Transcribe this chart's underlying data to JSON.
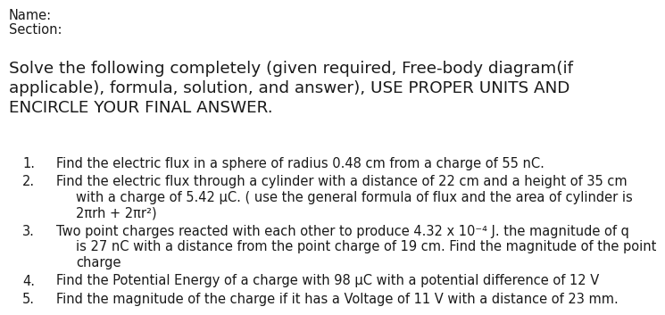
{
  "background_color": "#ffffff",
  "label_name": "Name:",
  "label_section": "Section:",
  "header_line1": "Solve the following completely (given required, Free-body diagram(if",
  "header_line2": "applicable), formula, solution, and answer), USE PROPER UNITS AND",
  "header_line3": "ENCIRCLE YOUR FINAL ANSWER.",
  "items": [
    {
      "num": "1.",
      "lines": [
        "Find the electric flux in a sphere of radius 0.48 cm from a charge of 55 nC."
      ]
    },
    {
      "num": "2.",
      "lines": [
        "Find the electric flux through a cylinder with a distance of 22 cm and a height of 35 cm",
        "with a charge of 5.42 μC. ( use the general formula of flux and the area of cylinder is",
        "2πrh + 2πr²)"
      ]
    },
    {
      "num": "3.",
      "lines": [
        "Two point charges reacted with each other to produce 4.32 x 10⁻⁴ J. the magnitude of q",
        "is 27 nC with a distance from the point charge of 19 cm. Find the magnitude of the point",
        "charge"
      ]
    },
    {
      "num": "4.",
      "lines": [
        "Find the Potential Energy of a charge with 98 μC with a potential difference of 12 V"
      ]
    },
    {
      "num": "5.",
      "lines": [
        "Find the magnitude of the charge if it has a Voltage of 11 V with a distance of 23 mm."
      ]
    }
  ],
  "header_fontsize": 13.2,
  "label_fontsize": 10.5,
  "item_fontsize": 10.5,
  "text_color": "#1a1a1a"
}
